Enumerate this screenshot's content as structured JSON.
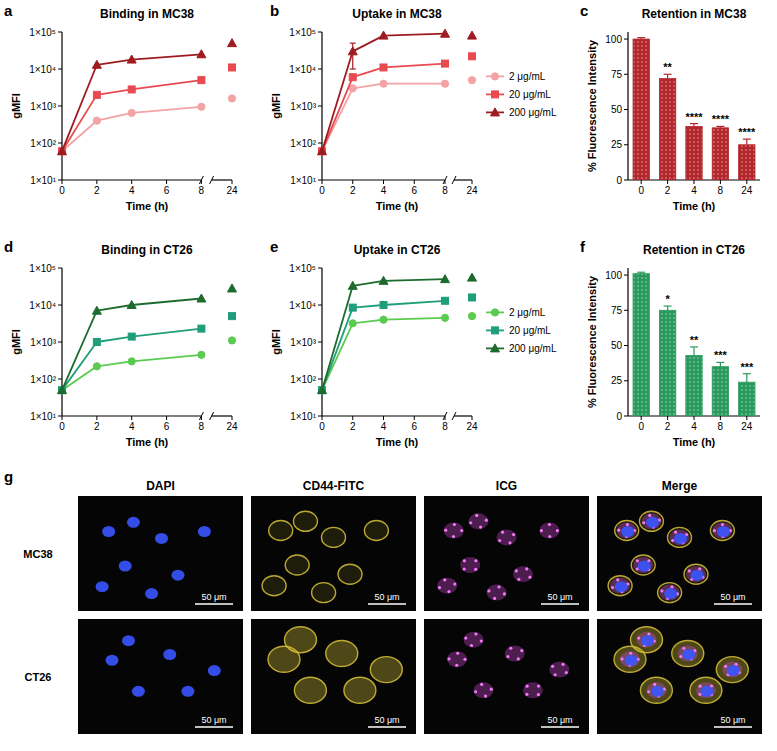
{
  "chart_data": [
    {
      "panel_label": "a",
      "type": "line",
      "title": "Binding in MC38",
      "x_label": "Time (h)",
      "y_label": "gMFI",
      "x": [
        0,
        2,
        4,
        8,
        24
      ],
      "xlim": [
        0,
        24
      ],
      "xticks": [
        0,
        2,
        4,
        6,
        8,
        24
      ],
      "ylim": [
        10,
        100000
      ],
      "log": "y",
      "yticks": [
        {
          "value": 10,
          "label": "1×10¹"
        },
        {
          "value": 100,
          "label": "1×10²"
        },
        {
          "value": 1000,
          "label": "1×10³"
        },
        {
          "value": 10000,
          "label": "1×10⁴"
        },
        {
          "value": 100000,
          "label": "1×10⁵"
        }
      ],
      "series": [
        {
          "color": "#f4a3a5",
          "marker": "circle",
          "values": [
            60,
            400,
            650,
            950,
            1600
          ]
        },
        {
          "color": "#e84a50",
          "marker": "square",
          "values": [
            60,
            2000,
            2800,
            5000,
            11000
          ]
        },
        {
          "color": "#9e1b22",
          "marker": "triangle",
          "values": [
            60,
            13000,
            18000,
            25000,
            50000
          ]
        }
      ]
    },
    {
      "panel_label": "b",
      "type": "line",
      "title": "Uptake in MC38",
      "x_label": "Time (h)",
      "y_label": "gMFI",
      "x": [
        0,
        2,
        4,
        8,
        24
      ],
      "xlim": [
        0,
        24
      ],
      "xticks": [
        0,
        2,
        4,
        6,
        8,
        24
      ],
      "ylim": [
        10,
        100000
      ],
      "log": "y",
      "legend": "right",
      "yticks": [
        {
          "value": 10,
          "label": "1×10¹"
        },
        {
          "value": 100,
          "label": "1×10²"
        },
        {
          "value": 1000,
          "label": "1×10³"
        },
        {
          "value": 10000,
          "label": "1×10⁴"
        },
        {
          "value": 100000,
          "label": "1×10⁵"
        }
      ],
      "series": [
        {
          "name": "2 μg/mL",
          "color": "#f4a3a5",
          "marker": "circle",
          "values": [
            60,
            3000,
            4000,
            4000,
            5000
          ]
        },
        {
          "name": "20 μg/mL",
          "color": "#e84a50",
          "marker": "square",
          "values": [
            60,
            6000,
            11000,
            14000,
            22000
          ]
        },
        {
          "name": "200 μg/mL",
          "color": "#9e1b22",
          "marker": "triangle",
          "values": [
            60,
            30000,
            80000,
            90000,
            80000
          ],
          "errors": [
            0,
            20000,
            0,
            0,
            0
          ]
        }
      ]
    },
    {
      "panel_label": "c",
      "type": "bar",
      "title": "Retention in MC38",
      "x_label": "Time (h)",
      "y_label": "% Fluorescence Intensity",
      "categories": [
        "0",
        "2",
        "4",
        "8",
        "24"
      ],
      "values": [
        100,
        72,
        38,
        37,
        25
      ],
      "errors": [
        1,
        3,
        2,
        1,
        4
      ],
      "annotations": [
        null,
        "**",
        "****",
        "****",
        "****"
      ],
      "color": "#b3262c",
      "ylim": [
        0,
        105
      ],
      "yticks": [
        0,
        25,
        50,
        75,
        100
      ]
    },
    {
      "panel_label": "d",
      "type": "line",
      "title": "Binding in CT26",
      "x_label": "Time (h)",
      "y_label": "gMFI",
      "x": [
        0,
        2,
        4,
        8,
        24
      ],
      "xlim": [
        0,
        24
      ],
      "xticks": [
        0,
        2,
        4,
        6,
        8,
        24
      ],
      "ylim": [
        10,
        100000
      ],
      "log": "y",
      "yticks": [
        {
          "value": 10,
          "label": "1×10¹"
        },
        {
          "value": 100,
          "label": "1×10²"
        },
        {
          "value": 1000,
          "label": "1×10³"
        },
        {
          "value": 10000,
          "label": "1×10⁴"
        },
        {
          "value": 100000,
          "label": "1×10⁵"
        }
      ],
      "series": [
        {
          "color": "#5acb4f",
          "marker": "circle",
          "values": [
            50,
            220,
            300,
            450,
            1100
          ]
        },
        {
          "color": "#1f9e7a",
          "marker": "square",
          "values": [
            50,
            1000,
            1400,
            2300,
            5000
          ]
        },
        {
          "color": "#1e6b2e",
          "marker": "triangle",
          "values": [
            50,
            7000,
            10000,
            15000,
            28000
          ]
        }
      ]
    },
    {
      "panel_label": "e",
      "type": "line",
      "title": "Uptake in CT26",
      "x_label": "Time (h)",
      "y_label": "gMFI",
      "x": [
        0,
        2,
        4,
        8,
        24
      ],
      "xlim": [
        0,
        24
      ],
      "xticks": [
        0,
        2,
        4,
        6,
        8,
        24
      ],
      "ylim": [
        10,
        100000
      ],
      "log": "y",
      "legend": "right",
      "yticks": [
        {
          "value": 10,
          "label": "1×10¹"
        },
        {
          "value": 100,
          "label": "1×10²"
        },
        {
          "value": 1000,
          "label": "1×10³"
        },
        {
          "value": 10000,
          "label": "1×10⁴"
        },
        {
          "value": 100000,
          "label": "1×10⁵"
        }
      ],
      "series": [
        {
          "name": "2 μg/mL",
          "color": "#5acb4f",
          "marker": "circle",
          "values": [
            50,
            3200,
            4000,
            4500,
            5000
          ]
        },
        {
          "name": "20 μg/mL",
          "color": "#1f9e7a",
          "marker": "square",
          "values": [
            50,
            8500,
            10000,
            13000,
            16000
          ]
        },
        {
          "name": "200 μg/mL",
          "color": "#1e6b2e",
          "marker": "triangle",
          "values": [
            50,
            33000,
            45000,
            50000,
            55000
          ]
        }
      ]
    },
    {
      "panel_label": "f",
      "type": "bar",
      "title": "Retention in CT26",
      "x_label": "Time (h)",
      "y_label": "% Fluorescence Intensity",
      "categories": [
        "0",
        "2",
        "4",
        "8",
        "24"
      ],
      "values": [
        101,
        75,
        43,
        35,
        24
      ],
      "errors": [
        1,
        3,
        6,
        3,
        6
      ],
      "annotations": [
        null,
        "*",
        "**",
        "***",
        "***"
      ],
      "color": "#2a9a5c",
      "ylim": [
        0,
        105
      ],
      "yticks": [
        0,
        25,
        50,
        75,
        100
      ]
    }
  ],
  "image_panel": {
    "panel_label": "g",
    "columns": [
      "DAPI",
      "CD44-FITC",
      "ICG",
      "Merge"
    ],
    "rows": [
      "MC38",
      "CT26"
    ],
    "scale_bar": "50 μm"
  }
}
